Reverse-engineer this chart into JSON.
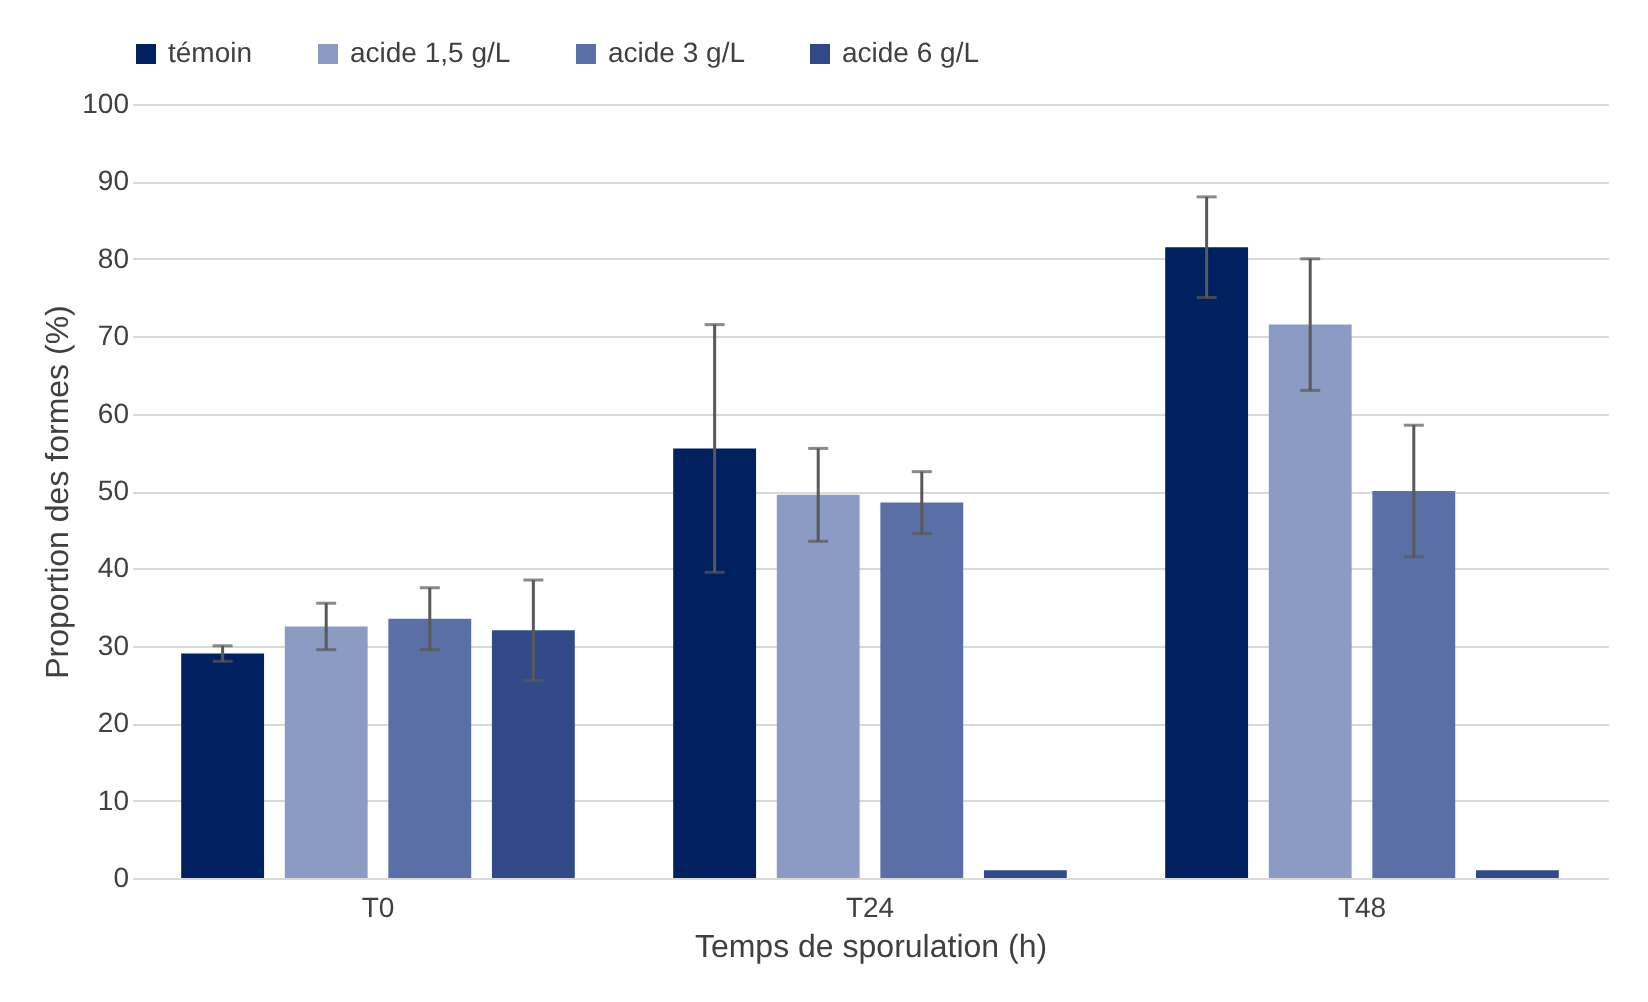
{
  "chart_data": {
    "type": "bar",
    "xlabel": "Temps de sporulation (h)",
    "ylabel": "Proportion des formes (%)",
    "categories": [
      "T0",
      "T24",
      "T48"
    ],
    "series": [
      {
        "name": "témoin",
        "color": "#002060",
        "values": [
          29,
          55.5,
          81.5
        ],
        "errors": [
          1,
          16,
          6.5
        ]
      },
      {
        "name": "acide 1,5 g/L",
        "color": "#8c9bc4",
        "values": [
          32.5,
          49.5,
          71.5
        ],
        "errors": [
          3,
          6,
          8.5
        ]
      },
      {
        "name": "acide 3 g/L",
        "color": "#5a6fa6",
        "values": [
          33.5,
          48.5,
          50
        ],
        "errors": [
          4,
          4,
          8.5
        ]
      },
      {
        "name": "acide 6 g/L",
        "color": "#334a88",
        "values": [
          32,
          1,
          1
        ],
        "errors": [
          6.5,
          null,
          null
        ]
      }
    ],
    "ylim": [
      0,
      100
    ],
    "yticks": [
      0,
      10,
      20,
      30,
      40,
      50,
      60,
      70,
      80,
      90,
      100
    ],
    "grid": "y",
    "legend": "top"
  }
}
